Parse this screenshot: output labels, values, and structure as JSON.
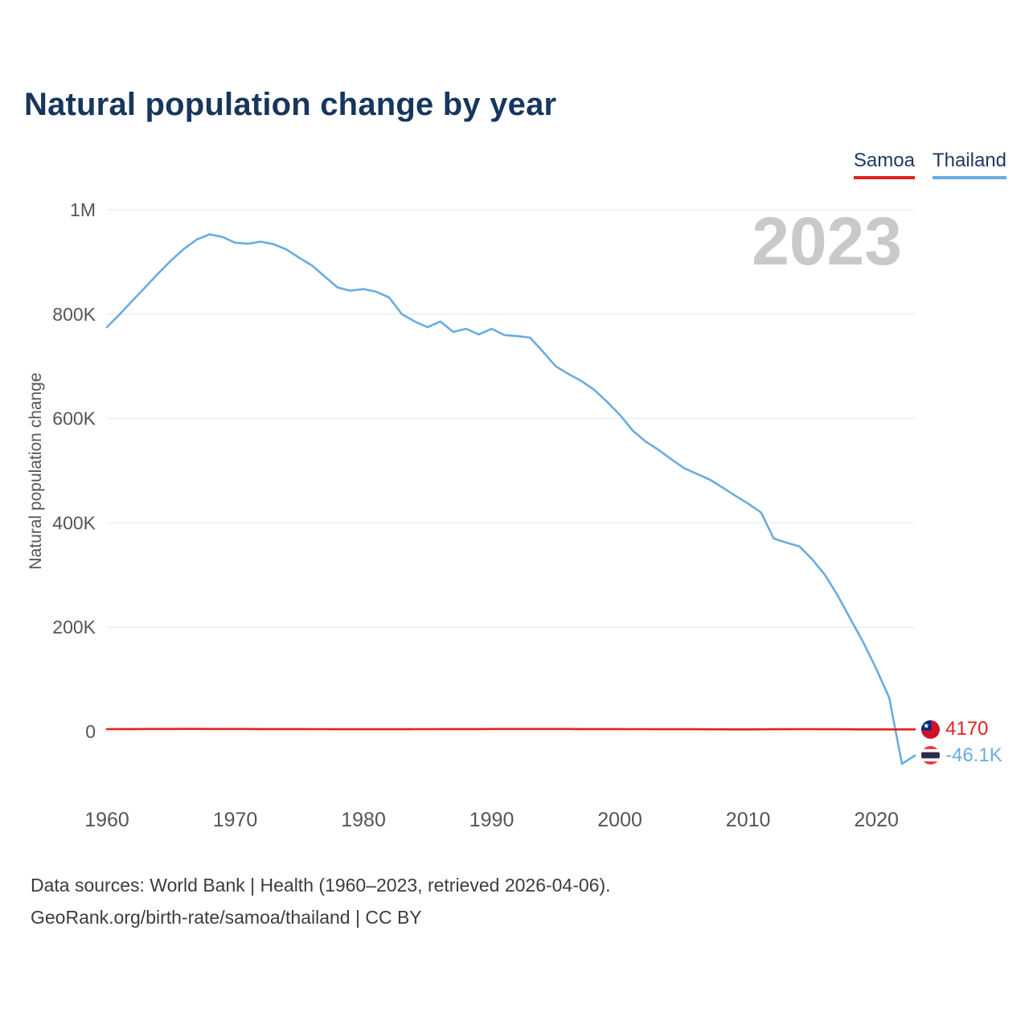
{
  "page": {
    "title": "Natural population change by year",
    "footer_line1": "Data sources: World Bank | Health (1960–2023, retrieved 2026-04-06).",
    "footer_line2": "GeoRank.org/birth-rate/samoa/thailand | CC BY"
  },
  "colors": {
    "title": "#17365d",
    "grid": "#e8e8e8",
    "tick_text": "#555555",
    "watermark": "#c9c9c9",
    "samoa_red": "#e2211c",
    "thailand_blue": "#69ace0"
  },
  "chart_data": {
    "type": "line",
    "title": "Natural population change by year",
    "ylabel": "Natural population change",
    "watermark": "2023",
    "unit": "thousands",
    "grid": true,
    "legend_position": "top-right",
    "ylim_k": [
      -100,
      1000
    ],
    "x": [
      1960,
      1961,
      1962,
      1963,
      1964,
      1965,
      1966,
      1967,
      1968,
      1969,
      1970,
      1971,
      1972,
      1973,
      1974,
      1975,
      1976,
      1977,
      1978,
      1979,
      1980,
      1981,
      1982,
      1983,
      1984,
      1985,
      1986,
      1987,
      1988,
      1989,
      1990,
      1991,
      1992,
      1993,
      1994,
      1995,
      1996,
      1997,
      1998,
      1999,
      2000,
      2001,
      2002,
      2003,
      2004,
      2005,
      2006,
      2007,
      2008,
      2009,
      2010,
      2011,
      2012,
      2013,
      2014,
      2015,
      2016,
      2017,
      2018,
      2019,
      2020,
      2021,
      2022,
      2023
    ],
    "xticks": [
      1960,
      1970,
      1980,
      1990,
      2000,
      2010,
      2020
    ],
    "yticks": [
      {
        "label": "0",
        "value_k": 0
      },
      {
        "label": "200K",
        "value_k": 200
      },
      {
        "label": "400K",
        "value_k": 400
      },
      {
        "label": "600K",
        "value_k": 600
      },
      {
        "label": "800K",
        "value_k": 800
      },
      {
        "label": "1M",
        "value_k": 1000
      }
    ],
    "series": [
      {
        "name": "Samoa",
        "color": "#e2211c",
        "end_label": "4170",
        "values_k": [
          4.6,
          4.7,
          4.8,
          4.9,
          5.0,
          5.0,
          5.1,
          5.1,
          5.0,
          5.0,
          4.9,
          4.9,
          4.8,
          4.8,
          4.7,
          4.7,
          4.6,
          4.6,
          4.5,
          4.5,
          4.4,
          4.4,
          4.5,
          4.5,
          4.6,
          4.6,
          4.7,
          4.7,
          4.8,
          4.8,
          4.9,
          4.9,
          5.0,
          5.0,
          5.0,
          4.9,
          4.9,
          4.8,
          4.8,
          4.7,
          4.7,
          4.6,
          4.6,
          4.5,
          4.5,
          4.4,
          4.4,
          4.3,
          4.3,
          4.2,
          4.2,
          4.3,
          4.4,
          4.5,
          4.6,
          4.6,
          4.5,
          4.4,
          4.3,
          4.2,
          4.2,
          4.2,
          4.2,
          4.17
        ]
      },
      {
        "name": "Thailand",
        "color": "#69ace0",
        "end_label": "-46.1K",
        "values_k": [
          775,
          800,
          826,
          852,
          878,
          903,
          925,
          943,
          953,
          948,
          937,
          935,
          939,
          934,
          924,
          908,
          893,
          872,
          851,
          845,
          848,
          843,
          832,
          800,
          786,
          775,
          786,
          766,
          772,
          761,
          772,
          760,
          758,
          755,
          728,
          700,
          685,
          672,
          655,
          632,
          607,
          577,
          556,
          540,
          522,
          505,
          494,
          483,
          468,
          452,
          437,
          420,
          370,
          362,
          355,
          330,
          300,
          260,
          215,
          170,
          120,
          65,
          -62,
          -46.1
        ]
      }
    ]
  }
}
